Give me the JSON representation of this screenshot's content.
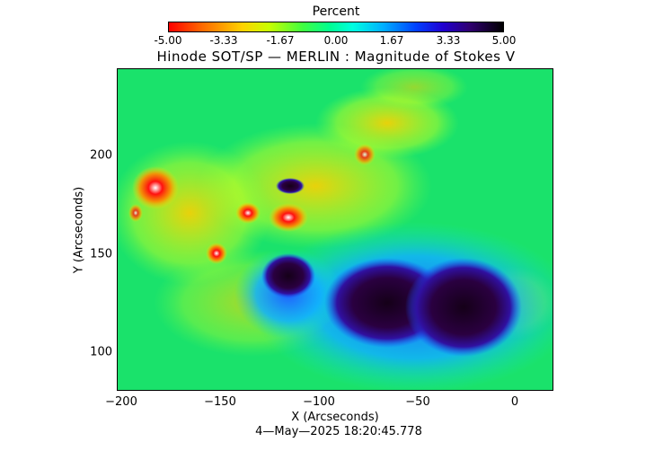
{
  "colorbar": {
    "title": "Percent",
    "tick_labels": [
      "-5.00",
      "-3.33",
      "-1.67",
      "0.00",
      "1.67",
      "3.33",
      "5.00"
    ],
    "min": -5.0,
    "max": 5.0
  },
  "plot": {
    "title": "Hinode SOT/SP — MERLIN : Magnitude of Stokes V",
    "x_label": "X (Arcseconds)",
    "y_label": "Y (Arcseconds)",
    "x_ticks": [
      "−200",
      "−150",
      "−100",
      "−50",
      "0"
    ],
    "y_ticks": [
      "200",
      "150",
      "100"
    ],
    "x_range": [
      -201,
      20
    ],
    "y_range": [
      80,
      243
    ]
  },
  "timestamp": "4—May—2025 18:20:45.778",
  "colors": {
    "background_field": "#1ae26b",
    "positive_dark": "#1a0020",
    "negative_red": "#ff1010"
  }
}
